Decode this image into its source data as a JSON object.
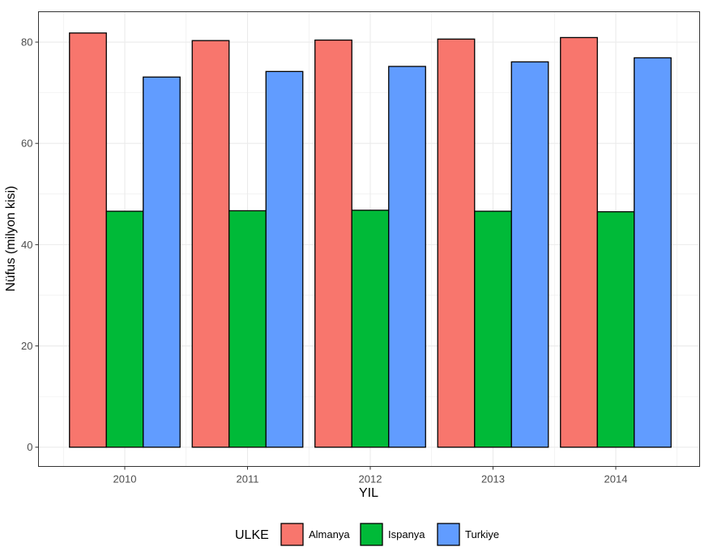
{
  "chart_data": {
    "type": "bar",
    "xlabel": "YIL",
    "ylabel": "Nüfus (milyon kisi)",
    "categories": [
      "2010",
      "2011",
      "2012",
      "2013",
      "2014"
    ],
    "series": [
      {
        "name": "Almanya",
        "color": "#F8766D",
        "values": [
          81.8,
          80.3,
          80.4,
          80.6,
          80.9
        ]
      },
      {
        "name": "Ispanya",
        "color": "#00BA38",
        "values": [
          46.6,
          46.7,
          46.8,
          46.6,
          46.5
        ]
      },
      {
        "name": "Turkiye",
        "color": "#619CFF",
        "values": [
          73.1,
          74.2,
          75.2,
          76.1,
          76.9
        ]
      }
    ],
    "ylim": [
      -3.8,
      86.0
    ],
    "yticks": [
      "0",
      "20",
      "40",
      "60",
      "80"
    ],
    "grid": true,
    "legend": {
      "title": "ULKE",
      "position": "bottom"
    },
    "colors": {
      "panel_border": "#333333",
      "grid": "#ebebeb",
      "bar_outline": "#000000"
    }
  }
}
